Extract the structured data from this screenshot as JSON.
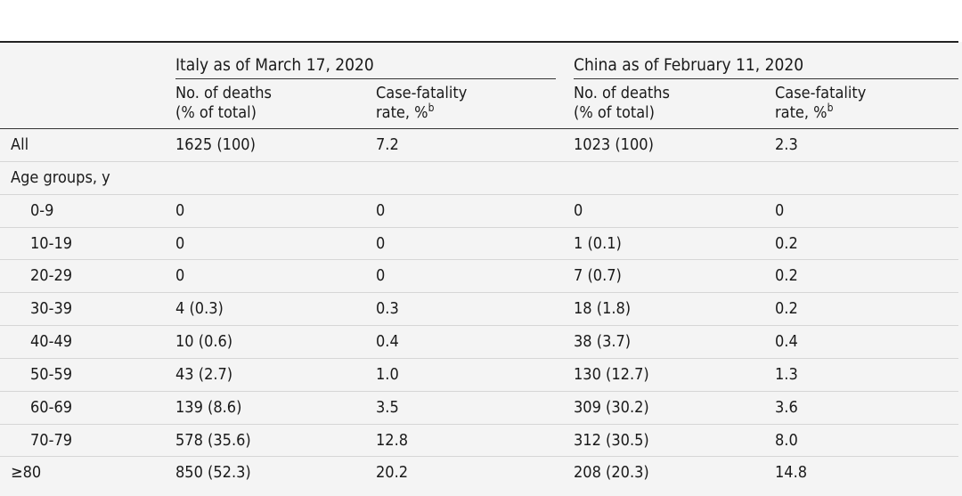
{
  "groups": [
    {
      "label": "Italy as of March 17, 2020"
    },
    {
      "label": "China as of February 11, 2020"
    }
  ],
  "subheaders": {
    "deaths": "No. of deaths\n(% of total)",
    "cfr": "Case-fatality\nrate, %",
    "cfr_footnote": "b"
  },
  "rows": [
    {
      "label": "All",
      "indent": false,
      "italy_deaths": "1625 (100)",
      "italy_cfr": "7.2",
      "china_deaths": "1023 (100)",
      "china_cfr": "2.3"
    },
    {
      "label": "Age groups, y",
      "indent": false,
      "italy_deaths": "",
      "italy_cfr": "",
      "china_deaths": "",
      "china_cfr": ""
    },
    {
      "label": "0-9",
      "indent": true,
      "italy_deaths": "0",
      "italy_cfr": "0",
      "china_deaths": "0",
      "china_cfr": "0"
    },
    {
      "label": "10-19",
      "indent": true,
      "italy_deaths": "0",
      "italy_cfr": "0",
      "china_deaths": "1 (0.1)",
      "china_cfr": "0.2"
    },
    {
      "label": "20-29",
      "indent": true,
      "italy_deaths": "0",
      "italy_cfr": "0",
      "china_deaths": "7 (0.7)",
      "china_cfr": "0.2"
    },
    {
      "label": "30-39",
      "indent": true,
      "italy_deaths": "4 (0.3)",
      "italy_cfr": "0.3",
      "china_deaths": "18 (1.8)",
      "china_cfr": "0.2"
    },
    {
      "label": "40-49",
      "indent": true,
      "italy_deaths": "10 (0.6)",
      "italy_cfr": "0.4",
      "china_deaths": "38 (3.7)",
      "china_cfr": "0.4"
    },
    {
      "label": "50-59",
      "indent": true,
      "italy_deaths": "43 (2.7)",
      "italy_cfr": "1.0",
      "china_deaths": "130 (12.7)",
      "china_cfr": "1.3"
    },
    {
      "label": "60-69",
      "indent": true,
      "italy_deaths": "139 (8.6)",
      "italy_cfr": "3.5",
      "china_deaths": "309 (30.2)",
      "china_cfr": "3.6"
    },
    {
      "label": "70-79",
      "indent": true,
      "italy_deaths": "578 (35.6)",
      "italy_cfr": "12.8",
      "china_deaths": "312 (30.5)",
      "china_cfr": "8.0"
    },
    {
      "label": "≥80",
      "indent": false,
      "italy_deaths": "850 (52.3)",
      "italy_cfr": "20.2",
      "china_deaths": "208 (20.3)",
      "china_cfr": "14.8"
    }
  ]
}
